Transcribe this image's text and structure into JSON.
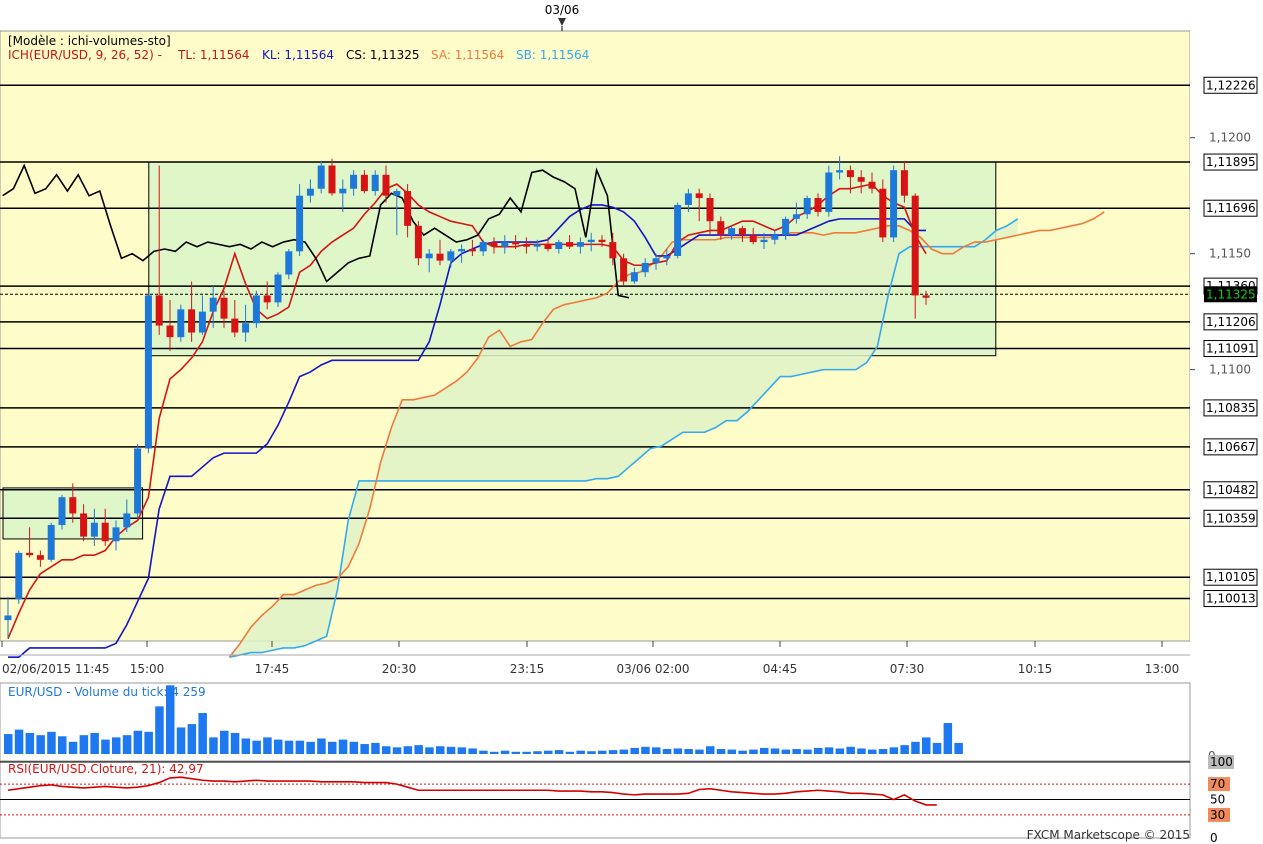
{
  "top_date_label": "03/06",
  "header": {
    "model": "[Modèle : ichi-volumes-sto]",
    "ich": "ICH(EUR/USD, 9, 26, 52) -",
    "tl": "TL: 1,11564",
    "kl": "KL: 1,11564",
    "cs": "CS: 1,11325",
    "sa": "SA: 1,11564",
    "sb": "SB: 1,11564"
  },
  "colors": {
    "background": "#fefcc9",
    "grid": "#000000",
    "up_candle": "#1e78d7",
    "down_candle": "#d61414",
    "tenkan": "#d61414",
    "kijun": "#1414c8",
    "chikou": "#000000",
    "span_a": "#f07a3a",
    "span_b": "#33aaee",
    "box_fill": "#dcf5c8",
    "rsi": "#d60000",
    "volume": "#1e78f0",
    "last_price": "#18c818"
  },
  "chart_data": [
    {
      "type": "candlestick",
      "title": "",
      "xlabel": "",
      "ylabel": "",
      "ylim": [
        1.0983,
        1.1246
      ],
      "x_ticks": [
        "02/06/2015 11:45",
        "15:00",
        "17:45",
        "20:30",
        "23:15",
        "03/06 02:00",
        "04:45",
        "07:30",
        "10:15",
        "13:00"
      ],
      "y_tick_labels": [
        "1,1200",
        "1,1150",
        "1,1100"
      ],
      "y_ticks": [
        1.12,
        1.115,
        1.11
      ],
      "horizontal_levels": [
        {
          "value": 1.12226,
          "label": "1,12226"
        },
        {
          "value": 1.11895,
          "label": "1,11895"
        },
        {
          "value": 1.11696,
          "label": "1,11696"
        },
        {
          "value": 1.1136,
          "label": "1,11360"
        },
        {
          "value": 1.11206,
          "label": "1,11206"
        },
        {
          "value": 1.11091,
          "label": "1,11091"
        },
        {
          "value": 1.10835,
          "label": "1,10835"
        },
        {
          "value": 1.10667,
          "label": "1,10667"
        },
        {
          "value": 1.10482,
          "label": "1,10482"
        },
        {
          "value": 1.10359,
          "label": "1,10359"
        },
        {
          "value": 1.10105,
          "label": "1,10105"
        },
        {
          "value": 1.10013,
          "label": "1,10013"
        }
      ],
      "last_price": {
        "value": 1.11325,
        "label": "1,11325"
      },
      "candles": [
        [
          1.0992,
          1.1002,
          1.0984,
          1.0994
        ],
        [
          1.1001,
          1.1022,
          1.0999,
          1.1021
        ],
        [
          1.1021,
          1.1032,
          1.1019,
          1.102
        ],
        [
          1.102,
          1.1022,
          1.1015,
          1.1018
        ],
        [
          1.1018,
          1.1034,
          1.1017,
          1.1033
        ],
        [
          1.1033,
          1.1046,
          1.1031,
          1.1045
        ],
        [
          1.1045,
          1.1051,
          1.1034,
          1.1038
        ],
        [
          1.1038,
          1.1042,
          1.1026,
          1.1028
        ],
        [
          1.1028,
          1.104,
          1.1024,
          1.1034
        ],
        [
          1.1034,
          1.104,
          1.1024,
          1.1026
        ],
        [
          1.1026,
          1.1035,
          1.1022,
          1.1032
        ],
        [
          1.1032,
          1.1044,
          1.103,
          1.1038
        ],
        [
          1.1038,
          1.1068,
          1.1036,
          1.1066
        ],
        [
          1.1066,
          1.1133,
          1.1064,
          1.1132
        ],
        [
          1.1132,
          1.1188,
          1.1115,
          1.1119
        ],
        [
          1.1119,
          1.113,
          1.1108,
          1.1114
        ],
        [
          1.1114,
          1.1128,
          1.1112,
          1.1126
        ],
        [
          1.1126,
          1.1138,
          1.1112,
          1.1116
        ],
        [
          1.1116,
          1.1132,
          1.1115,
          1.1125
        ],
        [
          1.1125,
          1.1136,
          1.1118,
          1.1131
        ],
        [
          1.1131,
          1.1134,
          1.1118,
          1.1122
        ],
        [
          1.1122,
          1.113,
          1.1114,
          1.1116
        ],
        [
          1.1116,
          1.1128,
          1.1112,
          1.112
        ],
        [
          1.112,
          1.1134,
          1.1118,
          1.1132
        ],
        [
          1.1132,
          1.1138,
          1.1126,
          1.1129
        ],
        [
          1.1129,
          1.1142,
          1.1127,
          1.1141
        ],
        [
          1.1141,
          1.1152,
          1.1139,
          1.1151
        ],
        [
          1.1151,
          1.118,
          1.1149,
          1.1175
        ],
        [
          1.1175,
          1.1182,
          1.1172,
          1.1178
        ],
        [
          1.1178,
          1.119,
          1.1176,
          1.1188
        ],
        [
          1.1188,
          1.1191,
          1.1175,
          1.1176
        ],
        [
          1.1176,
          1.1182,
          1.1168,
          1.1178
        ],
        [
          1.1178,
          1.1186,
          1.1175,
          1.1184
        ],
        [
          1.1184,
          1.1186,
          1.1176,
          1.1177
        ],
        [
          1.1177,
          1.1186,
          1.1175,
          1.1184
        ],
        [
          1.1184,
          1.1188,
          1.1172,
          1.1175
        ],
        [
          1.1175,
          1.1178,
          1.1158,
          1.1177
        ],
        [
          1.1177,
          1.118,
          1.1157,
          1.1162
        ],
        [
          1.1162,
          1.1164,
          1.1145,
          1.1148
        ],
        [
          1.1148,
          1.1152,
          1.1142,
          1.115
        ],
        [
          1.115,
          1.1156,
          1.1145,
          1.1147
        ],
        [
          1.1147,
          1.1152,
          1.1144,
          1.1151
        ],
        [
          1.1151,
          1.1154,
          1.1146,
          1.1152
        ],
        [
          1.1152,
          1.1156,
          1.1149,
          1.1151
        ],
        [
          1.1151,
          1.1156,
          1.1149,
          1.1155
        ],
        [
          1.1155,
          1.1157,
          1.115,
          1.1153
        ],
        [
          1.1153,
          1.1158,
          1.115,
          1.1155
        ],
        [
          1.1155,
          1.1158,
          1.1152,
          1.1154
        ],
        [
          1.1154,
          1.1157,
          1.115,
          1.1153
        ],
        [
          1.1153,
          1.1156,
          1.1151,
          1.1154
        ],
        [
          1.1154,
          1.1157,
          1.1151,
          1.1152
        ],
        [
          1.1152,
          1.1156,
          1.115,
          1.1155
        ],
        [
          1.1155,
          1.1158,
          1.1152,
          1.1153
        ],
        [
          1.1153,
          1.1157,
          1.115,
          1.1155
        ],
        [
          1.1155,
          1.1159,
          1.1151,
          1.1156
        ],
        [
          1.1156,
          1.1158,
          1.1153,
          1.1155
        ],
        [
          1.1155,
          1.1159,
          1.1145,
          1.1148
        ],
        [
          1.1148,
          1.115,
          1.1136,
          1.1138
        ],
        [
          1.1138,
          1.1144,
          1.1137,
          1.1142
        ],
        [
          1.1142,
          1.1148,
          1.114,
          1.1146
        ],
        [
          1.1146,
          1.115,
          1.1143,
          1.1148
        ],
        [
          1.1148,
          1.1152,
          1.1145,
          1.1149
        ],
        [
          1.1149,
          1.1172,
          1.1148,
          1.1171
        ],
        [
          1.1171,
          1.1178,
          1.1168,
          1.1176
        ],
        [
          1.1176,
          1.1178,
          1.1164,
          1.1174
        ],
        [
          1.1174,
          1.1176,
          1.1158,
          1.1164
        ],
        [
          1.1164,
          1.1166,
          1.1156,
          1.1158
        ],
        [
          1.1158,
          1.1162,
          1.1156,
          1.1161
        ],
        [
          1.1161,
          1.1162,
          1.1155,
          1.1158
        ],
        [
          1.1158,
          1.1161,
          1.1154,
          1.1155
        ],
        [
          1.1155,
          1.1159,
          1.1152,
          1.1156
        ],
        [
          1.1156,
          1.116,
          1.1154,
          1.1158
        ],
        [
          1.1158,
          1.1166,
          1.1156,
          1.1165
        ],
        [
          1.1165,
          1.1172,
          1.1163,
          1.1167
        ],
        [
          1.1167,
          1.1175,
          1.1165,
          1.1174
        ],
        [
          1.1174,
          1.1176,
          1.1166,
          1.1168
        ],
        [
          1.1168,
          1.1188,
          1.1166,
          1.1185
        ],
        [
          1.1185,
          1.1192,
          1.1182,
          1.1186
        ],
        [
          1.1186,
          1.1188,
          1.1176,
          1.1183
        ],
        [
          1.1183,
          1.1186,
          1.1176,
          1.1181
        ],
        [
          1.1181,
          1.1185,
          1.1176,
          1.1178
        ],
        [
          1.1178,
          1.1182,
          1.1155,
          1.1157
        ],
        [
          1.1157,
          1.1188,
          1.1155,
          1.1186
        ],
        [
          1.1186,
          1.119,
          1.1172,
          1.1175
        ],
        [
          1.1175,
          1.1176,
          1.1122,
          1.1132
        ],
        [
          1.1132,
          1.1134,
          1.1128,
          1.1131
        ]
      ],
      "tenkan": [
        1.0984,
        1.0995,
        1.1005,
        1.1012,
        1.1015,
        1.1018,
        1.1018,
        1.102,
        1.102,
        1.1022,
        1.1028,
        1.1032,
        1.1035,
        1.1045,
        1.1079,
        1.1096,
        1.11,
        1.1105,
        1.1112,
        1.1125,
        1.1135,
        1.115,
        1.1137,
        1.1126,
        1.1122,
        1.1124,
        1.1127,
        1.1142,
        1.1145,
        1.1151,
        1.1155,
        1.1158,
        1.1161,
        1.1167,
        1.1172,
        1.1178,
        1.118,
        1.1176,
        1.1171,
        1.1168,
        1.1166,
        1.1164,
        1.1163,
        1.1162,
        1.1155,
        1.1153,
        1.1153,
        1.1153,
        1.1154,
        1.1154,
        1.1154,
        1.1154,
        1.1154,
        1.1154,
        1.1154,
        1.1154,
        1.1153,
        1.1147,
        1.1145,
        1.1145,
        1.1146,
        1.1147,
        1.1155,
        1.1158,
        1.1159,
        1.116,
        1.116,
        1.1162,
        1.1164,
        1.1164,
        1.1162,
        1.116,
        1.1162,
        1.1166,
        1.1168,
        1.1171,
        1.1175,
        1.1178,
        1.1178,
        1.1179,
        1.118,
        1.1175,
        1.1172,
        1.117,
        1.1158,
        1.115
      ],
      "kijun": [
        1.0976,
        1.0976,
        1.098,
        1.098,
        1.098,
        1.098,
        1.098,
        1.098,
        1.098,
        1.098,
        1.0982,
        1.099,
        1.1,
        1.101,
        1.104,
        1.1054,
        1.1054,
        1.1054,
        1.1058,
        1.1062,
        1.1064,
        1.1064,
        1.1064,
        1.1064,
        1.1068,
        1.1076,
        1.1086,
        1.1097,
        1.1099,
        1.1102,
        1.1104,
        1.1104,
        1.1104,
        1.1104,
        1.1104,
        1.1104,
        1.1104,
        1.1104,
        1.1104,
        1.1112,
        1.1128,
        1.1146,
        1.115,
        1.1152,
        1.1154,
        1.1155,
        1.1155,
        1.1155,
        1.1155,
        1.1155,
        1.1156,
        1.1161,
        1.1166,
        1.1169,
        1.1171,
        1.1171,
        1.117,
        1.1168,
        1.1164,
        1.1157,
        1.1149,
        1.1149,
        1.1152,
        1.1155,
        1.1158,
        1.1158,
        1.1158,
        1.1158,
        1.1158,
        1.1158,
        1.1158,
        1.1158,
        1.1158,
        1.1158,
        1.116,
        1.1162,
        1.1164,
        1.1165,
        1.1165,
        1.1165,
        1.1165,
        1.1165,
        1.1165,
        1.1165,
        1.116,
        1.116
      ],
      "chikou": [
        1.1175,
        1.1178,
        1.1188,
        1.1176,
        1.1178,
        1.1184,
        1.1177,
        1.1184,
        1.1175,
        1.1177,
        1.1162,
        1.1148,
        1.115,
        1.1147,
        1.1151,
        1.1152,
        1.1151,
        1.1155,
        1.1153,
        1.1155,
        1.1154,
        1.1153,
        1.1154,
        1.1152,
        1.1155,
        1.1153,
        1.1155,
        1.1156,
        1.1155,
        1.1148,
        1.1138,
        1.1142,
        1.1146,
        1.1148,
        1.1149,
        1.1171,
        1.1176,
        1.1174,
        1.1164,
        1.1158,
        1.1161,
        1.1158,
        1.1155,
        1.1156,
        1.1158,
        1.1165,
        1.1167,
        1.1174,
        1.1168,
        1.1185,
        1.1186,
        1.1183,
        1.1181,
        1.1178,
        1.1157,
        1.1186,
        1.1175,
        1.1132,
        1.1131
      ],
      "span_a": [
        1.0976,
        1.0982,
        1.0989,
        1.0994,
        1.0998,
        1.1003,
        1.1003,
        1.1005,
        1.1007,
        1.1008,
        1.101,
        1.1015,
        1.1025,
        1.104,
        1.106,
        1.1075,
        1.1087,
        1.1087,
        1.1088,
        1.1089,
        1.1092,
        1.1095,
        1.1099,
        1.1105,
        1.1114,
        1.1117,
        1.111,
        1.1112,
        1.1113,
        1.112,
        1.1126,
        1.1128,
        1.1129,
        1.113,
        1.1131,
        1.1133,
        1.1138,
        1.1141,
        1.1142,
        1.1145,
        1.1149,
        1.1155,
        1.1156,
        1.1156,
        1.1156,
        1.1156,
        1.1157,
        1.1157,
        1.1157,
        1.1157,
        1.1157,
        1.1158,
        1.1159,
        1.1159,
        1.1159,
        1.1158,
        1.1159,
        1.1159,
        1.1159,
        1.116,
        1.1161,
        1.1162,
        1.1162,
        1.116,
        1.1157,
        1.1152,
        1.115,
        1.115,
        1.1153,
        1.1155,
        1.1155,
        1.1156,
        1.1157,
        1.1158,
        1.1159,
        1.116,
        1.116,
        1.1161,
        1.1162,
        1.1163,
        1.1165,
        1.1168
      ],
      "span_b": [
        1.0976,
        1.0977,
        1.0978,
        1.0978,
        1.0979,
        1.098,
        1.098,
        1.0981,
        1.0983,
        1.0985,
        1.1005,
        1.1035,
        1.1052,
        1.1052,
        1.1052,
        1.1052,
        1.1052,
        1.1052,
        1.1052,
        1.1052,
        1.1052,
        1.1052,
        1.1052,
        1.1052,
        1.1052,
        1.1052,
        1.1052,
        1.1052,
        1.1052,
        1.1052,
        1.1052,
        1.1052,
        1.1052,
        1.1052,
        1.1053,
        1.1053,
        1.1054,
        1.1058,
        1.1062,
        1.1066,
        1.1067,
        1.107,
        1.1073,
        1.1073,
        1.1073,
        1.1075,
        1.1078,
        1.1078,
        1.1082,
        1.1087,
        1.1092,
        1.1097,
        1.1097,
        1.1098,
        1.1099,
        1.11,
        1.11,
        1.11,
        1.11,
        1.1103,
        1.111,
        1.1132,
        1.115,
        1.1153,
        1.1153,
        1.1153,
        1.1153,
        1.1153,
        1.1153,
        1.1153,
        1.1156,
        1.116,
        1.1162,
        1.1165
      ],
      "boxes": [
        {
          "x_start": 0,
          "x_end": 12,
          "high": 1.1049,
          "low": 1.1027
        },
        {
          "x_start": 13.5,
          "x_end": 91,
          "high": 1.11895,
          "low": 1.1106
        }
      ]
    },
    {
      "type": "bar",
      "title": "EUR/USD - Volume du tick: 4 259",
      "ylabel": "",
      "ylim": [
        0,
        6500
      ],
      "y_tick_labels": [
        "0"
      ],
      "values": [
        1800,
        2200,
        1900,
        1700,
        2000,
        1600,
        1100,
        1700,
        1900,
        1300,
        1500,
        1700,
        2100,
        2000,
        4300,
        6200,
        2400,
        2700,
        3700,
        1500,
        2100,
        1900,
        1400,
        1200,
        1500,
        1300,
        1200,
        1200,
        1100,
        1400,
        1100,
        1300,
        1100,
        900,
        1000,
        700,
        600,
        700,
        800,
        600,
        700,
        650,
        600,
        500,
        300,
        200,
        300,
        200,
        200,
        250,
        300,
        350,
        200,
        300,
        250,
        300,
        350,
        400,
        550,
        650,
        600,
        450,
        500,
        450,
        400,
        700,
        450,
        400,
        300,
        400,
        550,
        500,
        400,
        450,
        400,
        550,
        600,
        500,
        650,
        500,
        400,
        450,
        600,
        800,
        1100,
        1500,
        1000,
        2800,
        1000
      ]
    },
    {
      "type": "line",
      "title": "RSI(EUR/USD.Cloture, 21): 42,97",
      "ylim": [
        0,
        100
      ],
      "y_tick_labels": [
        "100",
        "70",
        "50",
        "30",
        "0"
      ],
      "y_ticks": [
        100,
        70,
        50,
        30,
        0
      ],
      "values": [
        62,
        64,
        66,
        68,
        69,
        67,
        66,
        65,
        66,
        67,
        66,
        65,
        66,
        68,
        72,
        78,
        79,
        77,
        75,
        74,
        74,
        73,
        74,
        75,
        74,
        74,
        74,
        74,
        74,
        73,
        73,
        73,
        73,
        72,
        72,
        72,
        70,
        66,
        62,
        62,
        62,
        62,
        62,
        62,
        62,
        62,
        62,
        62,
        62,
        62,
        62,
        61,
        61,
        61,
        60,
        60,
        59,
        57,
        56,
        57,
        57,
        57,
        57,
        58,
        63,
        64,
        62,
        60,
        59,
        58,
        57,
        57,
        58,
        60,
        61,
        62,
        61,
        60,
        58,
        58,
        57,
        56,
        50,
        56,
        48,
        43,
        42.97
      ]
    }
  ],
  "footer": "FXCM Marketscope © 2015"
}
